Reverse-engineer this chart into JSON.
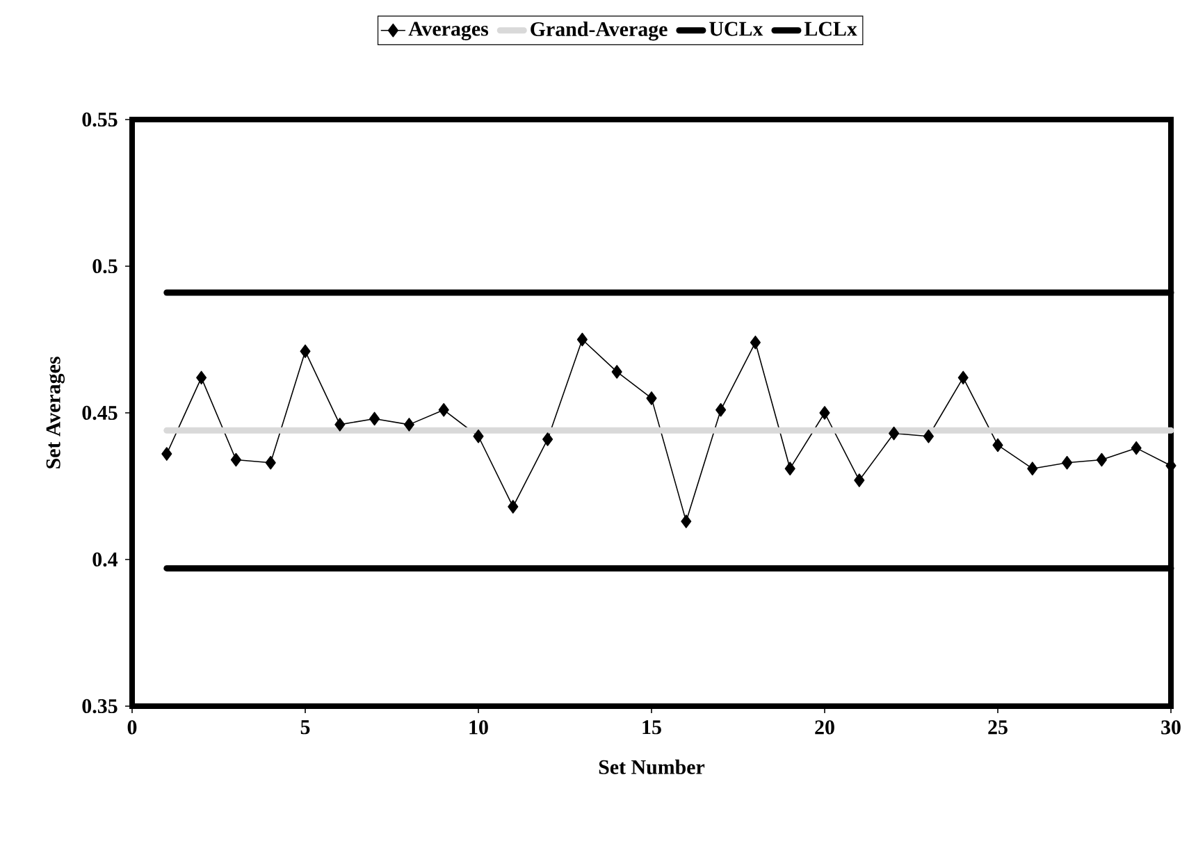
{
  "chart_data": {
    "type": "line",
    "xlabel": "Set Number",
    "ylabel": "Set Averages",
    "xlim": [
      0,
      30
    ],
    "ylim": [
      0.35,
      0.55
    ],
    "xticks": [
      0,
      5,
      10,
      15,
      20,
      25,
      30
    ],
    "yticks": [
      0.35,
      0.4,
      0.45,
      0.5,
      0.55
    ],
    "x": [
      1,
      2,
      3,
      4,
      5,
      6,
      7,
      8,
      9,
      10,
      11,
      12,
      13,
      14,
      15,
      16,
      17,
      18,
      19,
      20,
      21,
      22,
      23,
      24,
      25,
      26,
      27,
      28,
      29,
      30
    ],
    "legend": "top",
    "grid": false,
    "series": [
      {
        "name": "Averages",
        "color": "#000000",
        "marker": "diamond",
        "values": [
          0.436,
          0.462,
          0.434,
          0.433,
          0.471,
          0.446,
          0.448,
          0.446,
          0.451,
          0.442,
          0.418,
          0.441,
          0.475,
          0.464,
          0.455,
          0.413,
          0.451,
          0.474,
          0.431,
          0.45,
          0.427,
          0.443,
          0.442,
          0.462,
          0.439,
          0.431,
          0.433,
          0.434,
          0.438,
          0.432
        ]
      },
      {
        "name": "Grand-Average",
        "color": "#d9d9d9",
        "marker": "none",
        "values": [
          0.444,
          0.444,
          0.444,
          0.444,
          0.444,
          0.444,
          0.444,
          0.444,
          0.444,
          0.444,
          0.444,
          0.444,
          0.444,
          0.444,
          0.444,
          0.444,
          0.444,
          0.444,
          0.444,
          0.444,
          0.444,
          0.444,
          0.444,
          0.444,
          0.444,
          0.444,
          0.444,
          0.444,
          0.444,
          0.444
        ]
      },
      {
        "name": "UCLx",
        "color": "#000000",
        "marker": "none",
        "values": [
          0.491,
          0.491,
          0.491,
          0.491,
          0.491,
          0.491,
          0.491,
          0.491,
          0.491,
          0.491,
          0.491,
          0.491,
          0.491,
          0.491,
          0.491,
          0.491,
          0.491,
          0.491,
          0.491,
          0.491,
          0.491,
          0.491,
          0.491,
          0.491,
          0.491,
          0.491,
          0.491,
          0.491,
          0.491,
          0.491
        ]
      },
      {
        "name": "LCLx",
        "color": "#000000",
        "marker": "none",
        "values": [
          0.397,
          0.397,
          0.397,
          0.397,
          0.397,
          0.397,
          0.397,
          0.397,
          0.397,
          0.397,
          0.397,
          0.397,
          0.397,
          0.397,
          0.397,
          0.397,
          0.397,
          0.397,
          0.397,
          0.397,
          0.397,
          0.397,
          0.397,
          0.397,
          0.397,
          0.397,
          0.397,
          0.397,
          0.397,
          0.397
        ]
      }
    ]
  }
}
